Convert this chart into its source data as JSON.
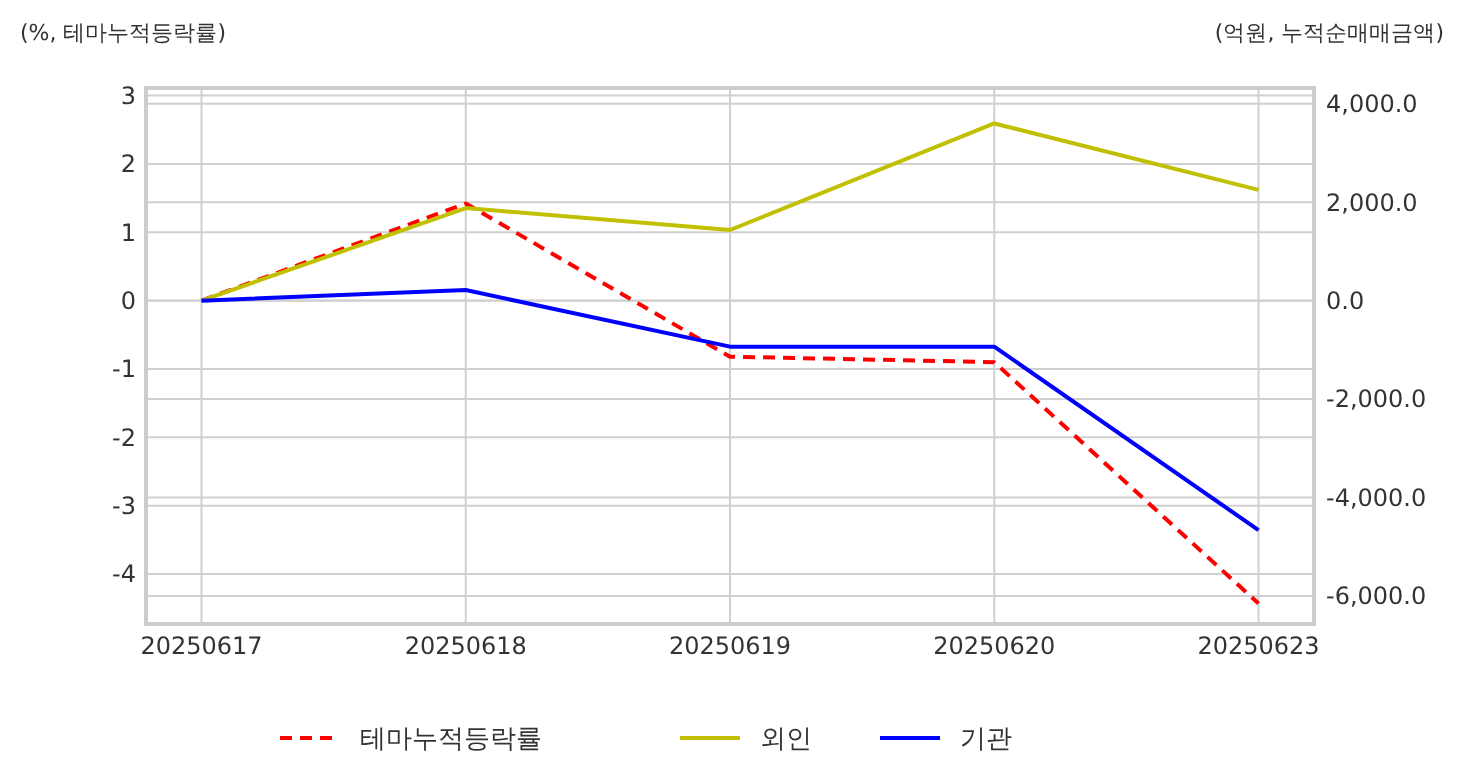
{
  "chart_data": {
    "type": "line",
    "ylabel": "(%, 테마누적등락률)",
    "y2label": "(억원, 누적순매매금액)",
    "categories": [
      "20250617",
      "20250618",
      "20250619",
      "20250620",
      "20250623"
    ],
    "series": [
      {
        "name": "테마누적등락률",
        "color": "#ff0000",
        "line_style": "dashed",
        "values": [
          0,
          1.42,
          -0.82,
          -0.9,
          -4.43
        ]
      },
      {
        "name": "외인",
        "color": "#c0c000",
        "axis": "y2",
        "values": [
          0,
          1880,
          1435,
          3600,
          2250
        ]
      },
      {
        "name": "기관",
        "color": "#0000ff",
        "axis": "y2",
        "values": [
          0,
          215,
          -935,
          -935,
          -4663
        ]
      }
    ],
    "ylim": [
      -4.73,
      3.11
    ],
    "yticks": [
      -4,
      -3,
      -2,
      -1,
      0,
      1,
      2,
      3
    ],
    "y2lim": [
      -6570,
      4320
    ],
    "y2ticks": [
      {
        "value": -6000,
        "label": "-6,000.0"
      },
      {
        "value": -4000,
        "label": "-4,000.0"
      },
      {
        "value": -2000,
        "label": "-2,000.0"
      },
      {
        "value": 0,
        "label": "0.0"
      },
      {
        "value": 2000,
        "label": "2,000.0"
      },
      {
        "value": 4000,
        "label": "4,000.0"
      }
    ],
    "grid": true,
    "legend": "bottom",
    "marker": "none"
  }
}
